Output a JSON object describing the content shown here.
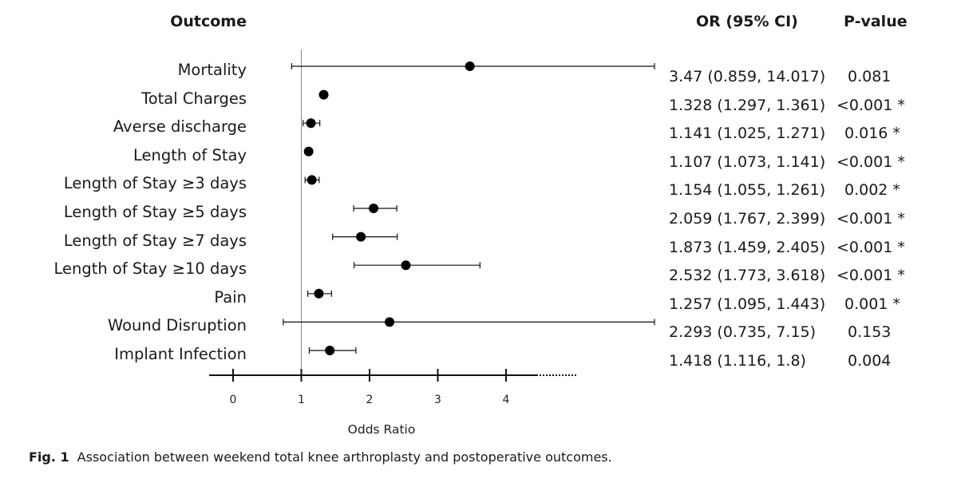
{
  "headers": {
    "outcome": "Outcome",
    "or": "OR (95% CI)",
    "pvalue": "P-value"
  },
  "chart_data": {
    "type": "forest",
    "xlabel": "Odds Ratio",
    "x_ticks": [
      0,
      1,
      2,
      3,
      4
    ],
    "reference_line": 1,
    "rows": [
      {
        "label": "Mortality",
        "or": 3.47,
        "lo": 0.859,
        "hi": 14.017,
        "or_text": "3.47 (0.859, 14.017)",
        "p_text": "0.081"
      },
      {
        "label": "Total Charges",
        "or": 1.328,
        "lo": 1.297,
        "hi": 1.361,
        "or_text": "1.328 (1.297, 1.361)",
        "p_text": "<0.001 *"
      },
      {
        "label": "Averse discharge",
        "or": 1.141,
        "lo": 1.025,
        "hi": 1.271,
        "or_text": "1.141 (1.025, 1.271)",
        "p_text": "0.016 *"
      },
      {
        "label": "Length of Stay",
        "or": 1.107,
        "lo": 1.073,
        "hi": 1.141,
        "or_text": "1.107 (1.073, 1.141)",
        "p_text": "<0.001 *"
      },
      {
        "label": "Length of Stay ≥3 days",
        "or": 1.154,
        "lo": 1.055,
        "hi": 1.261,
        "or_text": "1.154 (1.055, 1.261)",
        "p_text": "0.002 *"
      },
      {
        "label": "Length of Stay ≥5 days",
        "or": 2.059,
        "lo": 1.767,
        "hi": 2.399,
        "or_text": "2.059 (1.767, 2.399)",
        "p_text": "<0.001 *"
      },
      {
        "label": "Length of Stay ≥7 days",
        "or": 1.873,
        "lo": 1.459,
        "hi": 2.405,
        "or_text": "1.873 (1.459, 2.405)",
        "p_text": "<0.001 *"
      },
      {
        "label": "Length of Stay ≥10 days",
        "or": 2.532,
        "lo": 1.773,
        "hi": 3.618,
        "or_text": "2.532 (1.773, 3.618)",
        "p_text": "<0.001 *"
      },
      {
        "label": "Pain",
        "or": 1.257,
        "lo": 1.095,
        "hi": 1.443,
        "or_text": "1.257 (1.095, 1.443)",
        "p_text": "0.001 *"
      },
      {
        "label": "Wound Disruption",
        "or": 2.293,
        "lo": 0.735,
        "hi": 7.15,
        "or_text": "2.293 (0.735, 7.15)",
        "p_text": "0.153"
      },
      {
        "label": "Implant Infection",
        "or": 1.418,
        "lo": 1.116,
        "hi": 1.8,
        "or_text": "1.418 (1.116, 1.8)",
        "p_text": "0.004"
      }
    ]
  },
  "caption": {
    "fig": "Fig. 1",
    "text": "Association between weekend total knee arthroplasty and postoperative outcomes."
  }
}
